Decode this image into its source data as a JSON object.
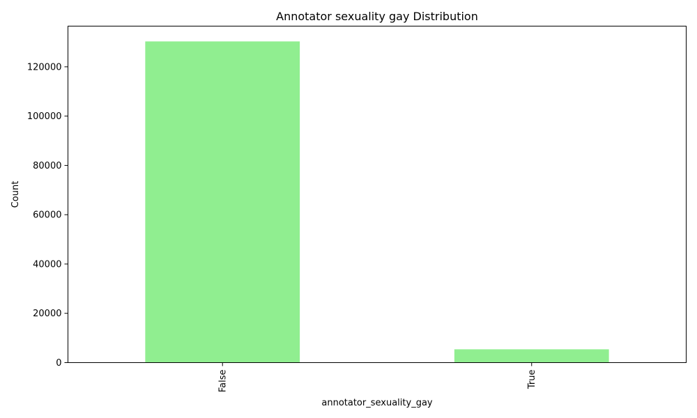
{
  "chart_data": {
    "type": "bar",
    "title": "Annotator sexuality gay Distribution",
    "xlabel": "annotator_sexuality_gay",
    "ylabel": "Count",
    "categories": [
      "False",
      "True"
    ],
    "values": [
      130300,
      5400
    ],
    "ylim": [
      0,
      136500
    ],
    "yticks": [
      0,
      20000,
      40000,
      60000,
      80000,
      100000,
      120000
    ],
    "bar_color": "#90ee90",
    "grid": false,
    "legend": "none"
  }
}
